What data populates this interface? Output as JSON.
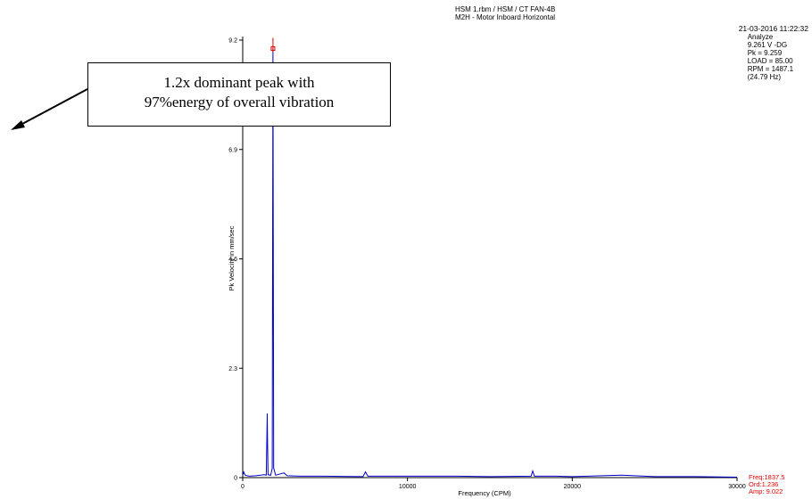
{
  "header": {
    "line1": "HSM 1.rbm / HSM / CT FAN-4B",
    "line2": "M2H - Motor Inboard Horizontal"
  },
  "meta": {
    "datetime": "21-03-2016 11:22:32",
    "lines": [
      "Analyze",
      "9.261 V -DG",
      "Pk = 9.259",
      "LOAD = 85.00",
      "RPM = 1487.1",
      "(24.79 Hz)"
    ]
  },
  "callout": {
    "line1": "1.2x dominant peak with",
    "line2": "97%energy of overall vibration"
  },
  "cursor_readout": {
    "freq": "Freq:1837.5",
    "ord": "Ord:1.236",
    "amp": "Amp: 9.022"
  },
  "colors": {
    "trace": "#0000cc",
    "cursor": "#e00000",
    "axis": "#000000",
    "annotation_text": "#000000"
  },
  "chart_data": {
    "type": "line",
    "title": "",
    "xlabel": "Frequency (CPM)",
    "ylabel": "Pk Velocity in mm/sec",
    "xlim": [
      0,
      30000
    ],
    "ylim": [
      0,
      9.2
    ],
    "x_ticks": [
      "0",
      "10000",
      "20000",
      "30000"
    ],
    "y_ticks": [
      "0",
      "2.3",
      "4.6",
      "6.9",
      "9.2"
    ],
    "grid": false,
    "series": [
      {
        "values": [
          [
            0,
            0.04
          ],
          [
            60,
            0.12
          ],
          [
            150,
            0.05
          ],
          [
            400,
            0.03
          ],
          [
            800,
            0.04
          ],
          [
            1300,
            0.06
          ],
          [
            1430,
            0.05
          ],
          [
            1470,
            0.85
          ],
          [
            1487,
            1.35
          ],
          [
            1505,
            0.8
          ],
          [
            1540,
            0.06
          ],
          [
            1700,
            0.05
          ],
          [
            1790,
            0.2
          ],
          [
            1837.5,
            9.022
          ],
          [
            1880,
            0.2
          ],
          [
            2000,
            0.05
          ],
          [
            2500,
            0.1
          ],
          [
            2700,
            0.04
          ],
          [
            3500,
            0.03
          ],
          [
            5000,
            0.03
          ],
          [
            7300,
            0.02
          ],
          [
            7450,
            0.12
          ],
          [
            7600,
            0.03
          ],
          [
            10000,
            0.03
          ],
          [
            13000,
            0.03
          ],
          [
            15000,
            0.02
          ],
          [
            17500,
            0.03
          ],
          [
            17600,
            0.14
          ],
          [
            17700,
            0.03
          ],
          [
            19000,
            0.03
          ],
          [
            20000,
            0.02
          ],
          [
            23000,
            0.05
          ],
          [
            25000,
            0.02
          ],
          [
            27500,
            0.02
          ],
          [
            30000,
            0.01
          ]
        ]
      }
    ],
    "cursor": {
      "x": 1837.5,
      "y": 9.022
    }
  }
}
